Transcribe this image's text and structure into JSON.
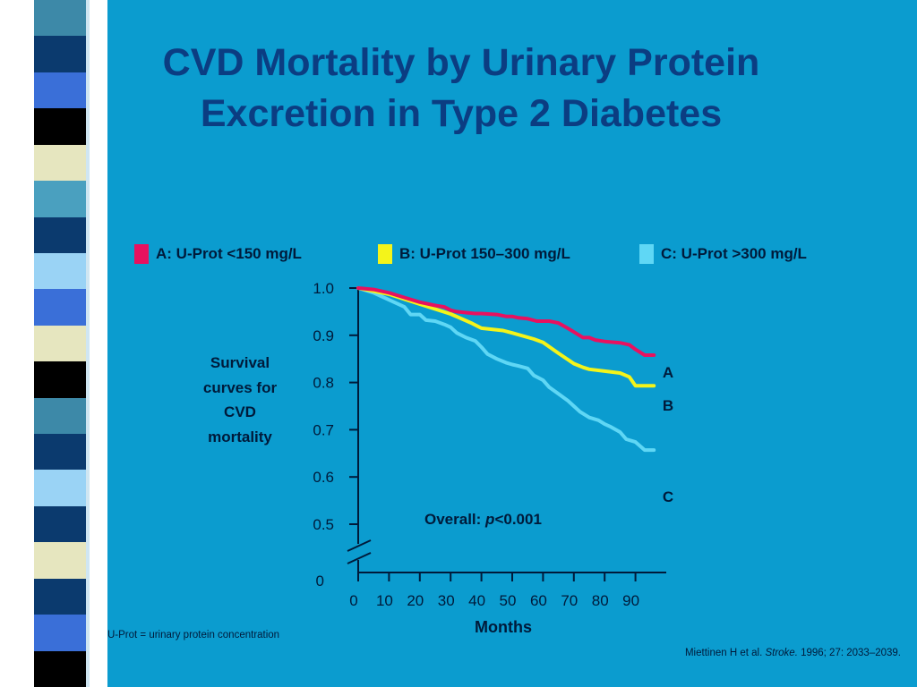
{
  "slide": {
    "title_line1": "CVD Mortality by Urinary Protein",
    "title_line2": "Excretion in Type 2 Diabetes",
    "side_label": [
      "Survival",
      "curves for",
      "CVD",
      "mortality"
    ],
    "footnote": "U-Prot = urinary protein concentration",
    "citation": {
      "prefix": "Miettinen H et al. ",
      "journal": "Stroke.",
      "suffix": " 1996; 27: 2033–2039."
    }
  },
  "colors": {
    "background": "#0b9ccf",
    "title": "#0b3d82",
    "series_a": "#e8115f",
    "series_b": "#f4f41a",
    "series_c": "#5fd7f5",
    "stripes": [
      "#3d89a8",
      "#0b3a6e",
      "#3a6fd8",
      "#000000",
      "#e6e6bf",
      "#4aa0bf",
      "#0b3a6e",
      "#9ad3f5",
      "#3a6fd8",
      "#e6e6bf",
      "#000000",
      "#3d89a8",
      "#0b3a6e",
      "#9ad3f5",
      "#0b3a6e",
      "#e6e6bf",
      "#0b3a6e",
      "#3a6fd8",
      "#000000"
    ]
  },
  "chart_data": {
    "type": "line",
    "xlabel": "Months",
    "ylabel": "",
    "xlim": [
      0,
      100
    ],
    "ylim": [
      0.5,
      1.0
    ],
    "x_ticks": [
      "0",
      "10",
      "20",
      "30",
      "40",
      "50",
      "60",
      "70",
      "80",
      "90"
    ],
    "y_ticks": [
      "1.0",
      "0.9",
      "0.8",
      "0.7",
      "0.6",
      "0.5"
    ],
    "y_break_label": "0",
    "legend_position": "top",
    "annotation": {
      "text_prefix": "Overall:  ",
      "text_italic": "p",
      "text_suffix": "<0.001"
    },
    "series": [
      {
        "name": "A: U-Prot <150 mg/L",
        "end_label": "A",
        "x": [
          0,
          5,
          10,
          15,
          20,
          25,
          28,
          30,
          32,
          35,
          38,
          40,
          45,
          48,
          50,
          52,
          55,
          58,
          60,
          62,
          65,
          68,
          70,
          73,
          75,
          77,
          80,
          85,
          88,
          90,
          93,
          96
        ],
        "y": [
          1.0,
          0.997,
          0.99,
          0.98,
          0.97,
          0.963,
          0.96,
          0.953,
          0.95,
          0.948,
          0.946,
          0.946,
          0.944,
          0.94,
          0.94,
          0.937,
          0.935,
          0.93,
          0.93,
          0.93,
          0.926,
          0.915,
          0.907,
          0.895,
          0.895,
          0.89,
          0.887,
          0.884,
          0.88,
          0.87,
          0.858,
          0.858
        ]
      },
      {
        "name": "B: U-Prot 150–300 mg/L",
        "end_label": "B",
        "x": [
          0,
          10,
          20,
          30,
          37,
          40,
          47,
          50,
          57,
          60,
          65,
          70,
          73,
          75,
          80,
          85,
          88,
          90,
          93,
          96
        ],
        "y": [
          1.0,
          0.987,
          0.966,
          0.945,
          0.925,
          0.915,
          0.91,
          0.905,
          0.892,
          0.885,
          0.862,
          0.84,
          0.832,
          0.828,
          0.824,
          0.82,
          0.812,
          0.793,
          0.793,
          0.793
        ]
      },
      {
        "name": "C: U-Prot >300 mg/L",
        "end_label": "C",
        "x": [
          0,
          5,
          10,
          15,
          17,
          20,
          22,
          25,
          28,
          30,
          32,
          35,
          38,
          40,
          42,
          45,
          48,
          50,
          52,
          55,
          57,
          60,
          62,
          65,
          68,
          70,
          72,
          75,
          78,
          80,
          82,
          85,
          87,
          90,
          93,
          96
        ],
        "y": [
          1.0,
          0.99,
          0.975,
          0.96,
          0.944,
          0.944,
          0.932,
          0.93,
          0.923,
          0.917,
          0.905,
          0.895,
          0.888,
          0.875,
          0.86,
          0.85,
          0.842,
          0.838,
          0.835,
          0.83,
          0.815,
          0.805,
          0.79,
          0.776,
          0.762,
          0.75,
          0.738,
          0.726,
          0.72,
          0.712,
          0.706,
          0.695,
          0.68,
          0.674,
          0.657,
          0.657
        ]
      }
    ]
  }
}
